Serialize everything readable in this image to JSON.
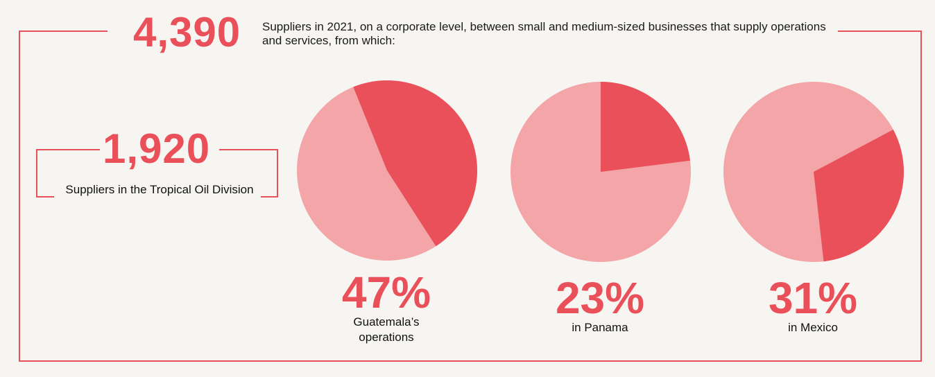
{
  "header": {
    "total": "4,390",
    "intro": "Suppliers in 2021, on a corporate level, between small and medium-sized businesses that supply operations and services, from which:"
  },
  "division": {
    "number": "1,920",
    "label": "Suppliers in the Tropical Oil Division"
  },
  "colors": {
    "accent": "#e9505a",
    "light": "#f4a5a8",
    "background": "#f7f5f1"
  },
  "chart_data": {
    "type": "pie",
    "charts": [
      {
        "label": "47%",
        "caption": "Guatemala’s operations",
        "value": 47,
        "start_angle_deg": -22
      },
      {
        "label": "23%",
        "caption": "in Panama",
        "value": 23,
        "start_angle_deg": 0
      },
      {
        "label": "31%",
        "caption": "in Mexico",
        "value": 31,
        "start_angle_deg": 62
      }
    ]
  }
}
